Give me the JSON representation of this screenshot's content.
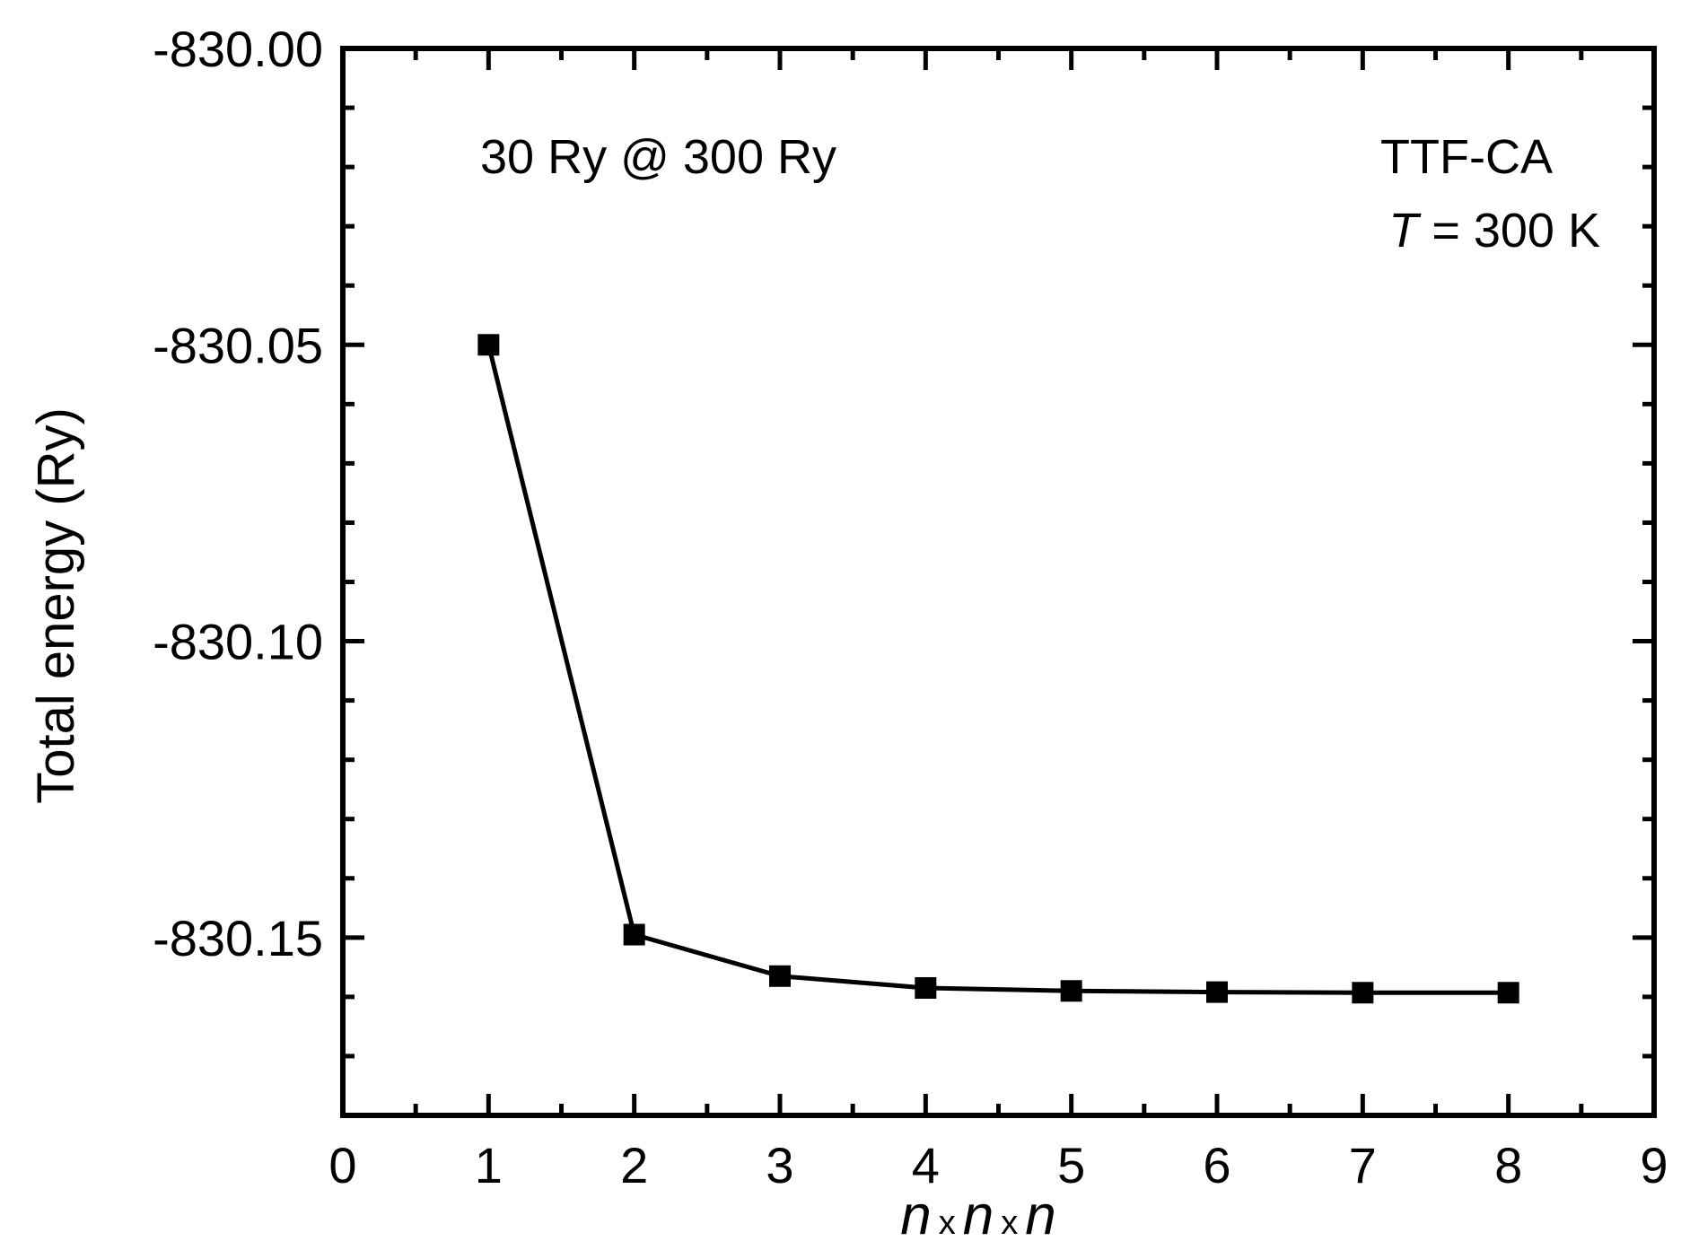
{
  "chart_data": {
    "type": "line",
    "x": [
      1,
      2,
      3,
      4,
      5,
      6,
      7,
      8
    ],
    "series": [
      {
        "values": [
          -830.05,
          -830.1495,
          -830.1565,
          -830.1585,
          -830.159,
          -830.1592,
          -830.1593,
          -830.1593
        ]
      }
    ],
    "xlim": [
      0,
      9
    ],
    "ylim": [
      -830.18,
      -830.0
    ],
    "xticks": [
      "0",
      "1",
      "2",
      "3",
      "4",
      "5",
      "6",
      "7",
      "8",
      "9"
    ],
    "yticks": [
      "-830.00",
      "-830.05",
      "-830.10",
      "-830.15"
    ],
    "ytick_values": [
      -830.0,
      -830.05,
      -830.1,
      -830.15
    ],
    "ylabel": "Total energy (Ry)",
    "xlabel": {
      "var": "n",
      "sep": "x"
    },
    "annotations": {
      "cutoff": "30 Ry @ 300 Ry",
      "system": "TTF-CA",
      "temp_var": "T",
      "temp_value": " = 300 K"
    },
    "grid": false,
    "legend": "none",
    "marker": "square",
    "line_color": "#000000"
  }
}
